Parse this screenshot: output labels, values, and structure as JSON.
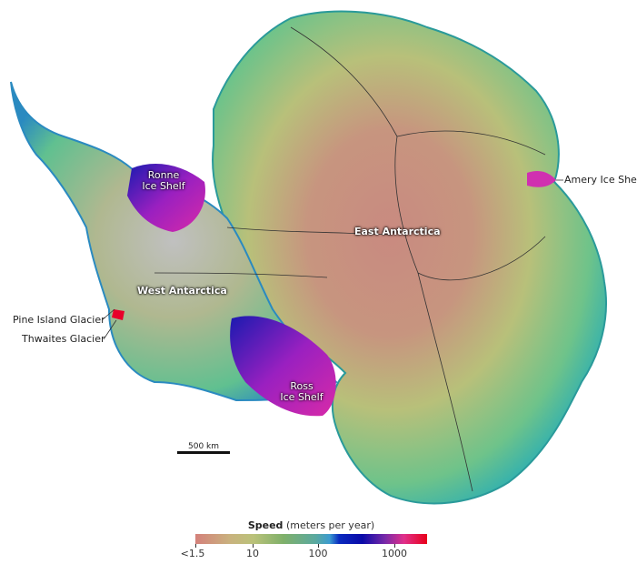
{
  "map": {
    "labels": {
      "ronne": "Ronne Ice Shelf",
      "ronne_line1": "Ronne",
      "ronne_line2": "Ice Shelf",
      "east": "East Antarctica",
      "west": "West Antarctica",
      "ross_line1": "Ross",
      "ross_line2": "Ice Shelf",
      "amery": "Amery Ice Shelf",
      "pine_island": "Pine Island Glacier",
      "thwaites": "Thwaites Glacier"
    },
    "scale_bar": "500 km"
  },
  "legend": {
    "title": "Speed",
    "unit": "(meters per year)",
    "ticks": [
      "<1.5",
      "10",
      "100",
      "1000"
    ],
    "colors": [
      "#d4817b",
      "#c9b27e",
      "#7fb06a",
      "#3b9bd0",
      "#0a0aa8",
      "#7a2aa8",
      "#e0308a",
      "#e8001a"
    ]
  }
}
